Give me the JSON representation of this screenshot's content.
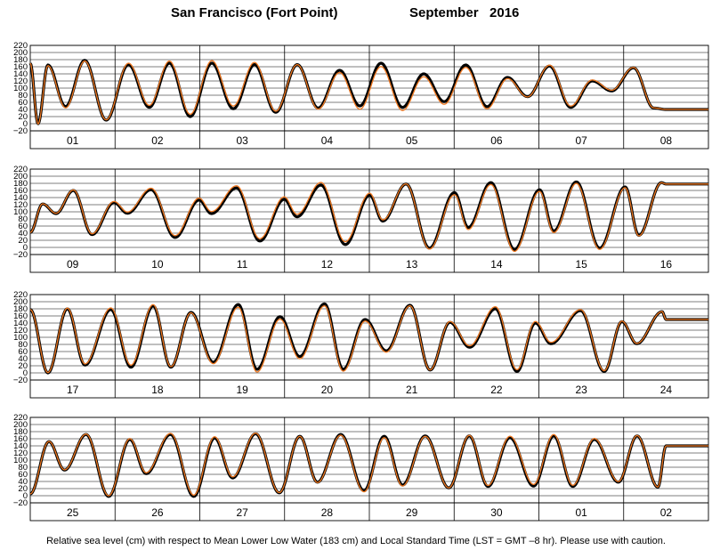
{
  "title": {
    "station": "San Francisco (Fort Point)",
    "period": "September   2016"
  },
  "footer": "Relative sea level (cm) with respect to Mean Lower Low Water (183 cm) and Local Standard Time (LST = GMT –8 hr). Please use with caution.",
  "colors": {
    "observed": "#000000",
    "predicted": "#f07820",
    "grid": "#000000"
  },
  "chart_data": {
    "type": "line",
    "y_range": [
      -20,
      220
    ],
    "y_ticks": [
      "220",
      "200",
      "180",
      "160",
      "140",
      "120",
      "100",
      "80",
      "60",
      "40",
      "20",
      "0",
      "−20"
    ],
    "grid": true,
    "series": [
      {
        "key": "observed",
        "style": "thick black line"
      },
      {
        "key": "predicted",
        "style": "thin orange line"
      }
    ],
    "panels": [
      {
        "days": [
          "01",
          "02",
          "03",
          "04",
          "05",
          "06",
          "07",
          "08"
        ],
        "extrema": [
          [
            0,
            170
          ],
          [
            2.2,
            0
          ],
          [
            5,
            165
          ],
          [
            10,
            48
          ],
          [
            15.4,
            178
          ],
          [
            21.5,
            10
          ],
          [
            27.8,
            166
          ],
          [
            33.7,
            46
          ],
          [
            39.4,
            170
          ],
          [
            45.3,
            20
          ],
          [
            51.4,
            170
          ],
          [
            57.5,
            42
          ],
          [
            63.5,
            166
          ],
          [
            69.5,
            32
          ],
          [
            75.6,
            166
          ],
          [
            81.5,
            44
          ],
          [
            87.6,
            150
          ],
          [
            93.3,
            50
          ],
          [
            99.3,
            170
          ],
          [
            105.4,
            46
          ],
          [
            111.4,
            140
          ],
          [
            117.2,
            62
          ],
          [
            123.3,
            165
          ],
          [
            129.3,
            48
          ],
          [
            135.1,
            130
          ],
          [
            140.8,
            76
          ],
          [
            147,
            162
          ],
          [
            153,
            46
          ],
          [
            159.1,
            120
          ],
          [
            164.6,
            92
          ],
          [
            170.8,
            157
          ],
          [
            176.5,
            44
          ],
          [
            180,
            40
          ]
        ],
        "offsets": [
          [
            0,
            0
          ],
          [
            11,
            -4
          ],
          [
            30,
            5
          ],
          [
            60,
            8
          ],
          [
            95,
            -10
          ],
          [
            130,
            -6
          ],
          [
            150,
            4
          ],
          [
            180,
            0
          ]
        ]
      },
      {
        "days": [
          "09",
          "10",
          "11",
          "12",
          "13",
          "14",
          "15",
          "16"
        ],
        "extrema": [
          [
            0,
            42
          ],
          [
            3.5,
            122
          ],
          [
            7.3,
            95
          ],
          [
            12.2,
            160
          ],
          [
            17.5,
            36
          ],
          [
            23.7,
            126
          ],
          [
            27.5,
            96
          ],
          [
            34.2,
            162
          ],
          [
            41,
            28
          ],
          [
            47.8,
            133
          ],
          [
            51.3,
            95
          ],
          [
            58.4,
            167
          ],
          [
            65,
            18
          ],
          [
            71.9,
            135
          ],
          [
            75.5,
            86
          ],
          [
            82.3,
            175
          ],
          [
            89.2,
            8
          ],
          [
            96.1,
            147
          ],
          [
            99.8,
            74
          ],
          [
            106.4,
            178
          ],
          [
            113,
            -2
          ],
          [
            120.1,
            154
          ],
          [
            124,
            56
          ],
          [
            130.4,
            182
          ],
          [
            137.1,
            -6
          ],
          [
            144.2,
            162
          ],
          [
            148.2,
            46
          ],
          [
            154.6,
            184
          ],
          [
            161.2,
            -2
          ],
          [
            168.4,
            170
          ],
          [
            172.3,
            34
          ],
          [
            178.7,
            182
          ],
          [
            180,
            178
          ]
        ],
        "offsets": [
          [
            0,
            0
          ],
          [
            40,
            5
          ],
          [
            90,
            8
          ],
          [
            120,
            -6
          ],
          [
            160,
            -4
          ],
          [
            180,
            0
          ]
        ]
      },
      {
        "days": [
          "17",
          "18",
          "19",
          "20",
          "21",
          "22",
          "23",
          "24"
        ],
        "extrema": [
          [
            0,
            178
          ],
          [
            5,
            0
          ],
          [
            10.5,
            180
          ],
          [
            15.5,
            22
          ],
          [
            22.8,
            178
          ],
          [
            28.5,
            16
          ],
          [
            34.8,
            188
          ],
          [
            39.8,
            16
          ],
          [
            45.5,
            170
          ],
          [
            51.8,
            30
          ],
          [
            58.9,
            192
          ],
          [
            64.2,
            10
          ],
          [
            70.7,
            158
          ],
          [
            76.3,
            46
          ],
          [
            83.3,
            194
          ],
          [
            88.6,
            10
          ],
          [
            94.8,
            150
          ],
          [
            100.8,
            62
          ],
          [
            107.5,
            190
          ],
          [
            113.2,
            8
          ],
          [
            118.8,
            142
          ],
          [
            124.4,
            72
          ],
          [
            131.7,
            180
          ],
          [
            137.8,
            4
          ],
          [
            143,
            140
          ],
          [
            147.4,
            82
          ],
          [
            155.8,
            175
          ],
          [
            162.5,
            4
          ],
          [
            167.5,
            144
          ],
          [
            171.7,
            82
          ],
          [
            178.9,
            172
          ],
          [
            180,
            150
          ]
        ],
        "offsets": [
          [
            0,
            0
          ],
          [
            30,
            6
          ],
          [
            60,
            -8
          ],
          [
            100,
            -4
          ],
          [
            130,
            6
          ],
          [
            180,
            0
          ]
        ]
      },
      {
        "days": [
          "25",
          "26",
          "27",
          "28",
          "29",
          "30",
          "01",
          "02"
        ],
        "extrema": [
          [
            0,
            5
          ],
          [
            5.3,
            152
          ],
          [
            9.7,
            72
          ],
          [
            15.8,
            172
          ],
          [
            22.2,
            -2
          ],
          [
            28.2,
            158
          ],
          [
            32.8,
            62
          ],
          [
            39.7,
            172
          ],
          [
            46.3,
            -2
          ],
          [
            52.2,
            162
          ],
          [
            57.3,
            50
          ],
          [
            63.8,
            174
          ],
          [
            70.5,
            8
          ],
          [
            76.3,
            167
          ],
          [
            81.3,
            38
          ],
          [
            87.9,
            172
          ],
          [
            94.5,
            14
          ],
          [
            100.2,
            167
          ],
          [
            105.4,
            30
          ],
          [
            111.8,
            168
          ],
          [
            118.5,
            22
          ],
          [
            124.3,
            168
          ],
          [
            129.6,
            26
          ],
          [
            135.8,
            163
          ],
          [
            142.5,
            27
          ],
          [
            148.2,
            168
          ],
          [
            153.6,
            26
          ],
          [
            159.7,
            158
          ],
          [
            166.5,
            38
          ],
          [
            171.8,
            168
          ],
          [
            177.7,
            24
          ],
          [
            180,
            140
          ]
        ],
        "offsets": [
          [
            0,
            0
          ],
          [
            50,
            4
          ],
          [
            100,
            -4
          ],
          [
            140,
            5
          ],
          [
            180,
            0
          ]
        ]
      }
    ]
  }
}
